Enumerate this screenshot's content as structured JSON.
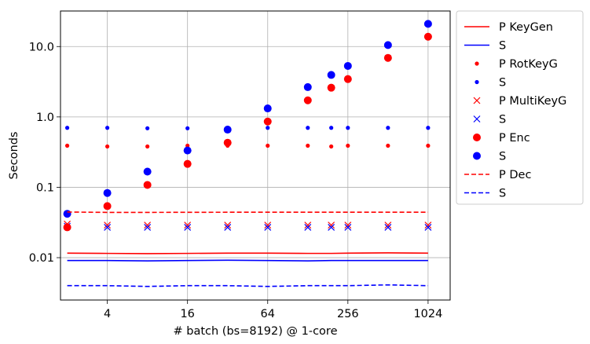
{
  "chart_data": {
    "type": "scatter",
    "x_scale": "log2",
    "y_scale": "log10",
    "xlabel": "# batch (bs=8192) @ 1-core",
    "ylabel": "Seconds",
    "x_ticks": [
      4,
      16,
      64,
      256,
      1024
    ],
    "x_tick_labels": [
      "4",
      "16",
      "64",
      "256",
      "1024"
    ],
    "y_ticks": [
      0.01,
      0.1,
      1.0,
      10.0
    ],
    "y_tick_labels": [
      "0.01",
      "0.1",
      "1.0",
      "10.0"
    ],
    "xlim": [
      1.78,
      1500
    ],
    "ylim": [
      0.0025,
      32
    ],
    "grid": true,
    "legend_position": "outside-right",
    "x": [
      2,
      4,
      8,
      16,
      32,
      64,
      128,
      192,
      256,
      512,
      1024
    ],
    "series": [
      {
        "name": "P KeyGen",
        "style": "solid-line",
        "color": "#ff0000",
        "values": [
          0.0116,
          0.0115,
          0.0114,
          0.0115,
          0.0116,
          0.0116,
          0.0115,
          0.0115,
          0.0116,
          0.0117,
          0.0116
        ]
      },
      {
        "name": "S",
        "style": "solid-line",
        "color": "#0000ff",
        "values": [
          0.0091,
          0.0091,
          0.009,
          0.0091,
          0.0092,
          0.0091,
          0.009,
          0.0091,
          0.0091,
          0.0091,
          0.0091
        ]
      },
      {
        "name": "P RotKeyG",
        "style": "small-dot",
        "color": "#ff0000",
        "values": [
          0.39,
          0.38,
          0.38,
          0.39,
          0.39,
          0.39,
          0.39,
          0.38,
          0.39,
          0.39,
          0.39
        ]
      },
      {
        "name": "S",
        "style": "small-dot",
        "color": "#0000ff",
        "values": [
          0.7,
          0.7,
          0.69,
          0.69,
          0.7,
          0.7,
          0.7,
          0.7,
          0.7,
          0.7,
          0.7
        ]
      },
      {
        "name": "P MultiKeyG",
        "style": "x",
        "color": "#ff0000",
        "values": [
          0.03,
          0.029,
          0.029,
          0.029,
          0.029,
          0.029,
          0.029,
          0.029,
          0.029,
          0.029,
          0.029
        ]
      },
      {
        "name": "S",
        "style": "x",
        "color": "#0000ff",
        "values": [
          0.028,
          0.027,
          0.027,
          0.027,
          0.027,
          0.027,
          0.027,
          0.027,
          0.027,
          0.027,
          0.027
        ]
      },
      {
        "name": "P Enc",
        "style": "big-dot",
        "color": "#ff0000",
        "values": [
          0.027,
          0.054,
          0.108,
          0.215,
          0.43,
          0.86,
          1.72,
          2.6,
          3.45,
          6.9,
          13.8
        ]
      },
      {
        "name": "S",
        "style": "big-dot",
        "color": "#0000ff",
        "values": [
          0.042,
          0.083,
          0.167,
          0.333,
          0.66,
          1.32,
          2.65,
          3.95,
          5.3,
          10.5,
          21.0
        ]
      },
      {
        "name": "P Dec",
        "style": "dashed-line",
        "color": "#ff0000",
        "values": [
          0.0445,
          0.044,
          0.044,
          0.0441,
          0.0442,
          0.0443,
          0.0442,
          0.0443,
          0.0442,
          0.0443,
          0.0442
        ]
      },
      {
        "name": "S",
        "style": "dashed-line",
        "color": "#0000ff",
        "values": [
          0.004,
          0.004,
          0.0039,
          0.004,
          0.004,
          0.0039,
          0.004,
          0.004,
          0.004,
          0.0041,
          0.004
        ]
      }
    ]
  }
}
